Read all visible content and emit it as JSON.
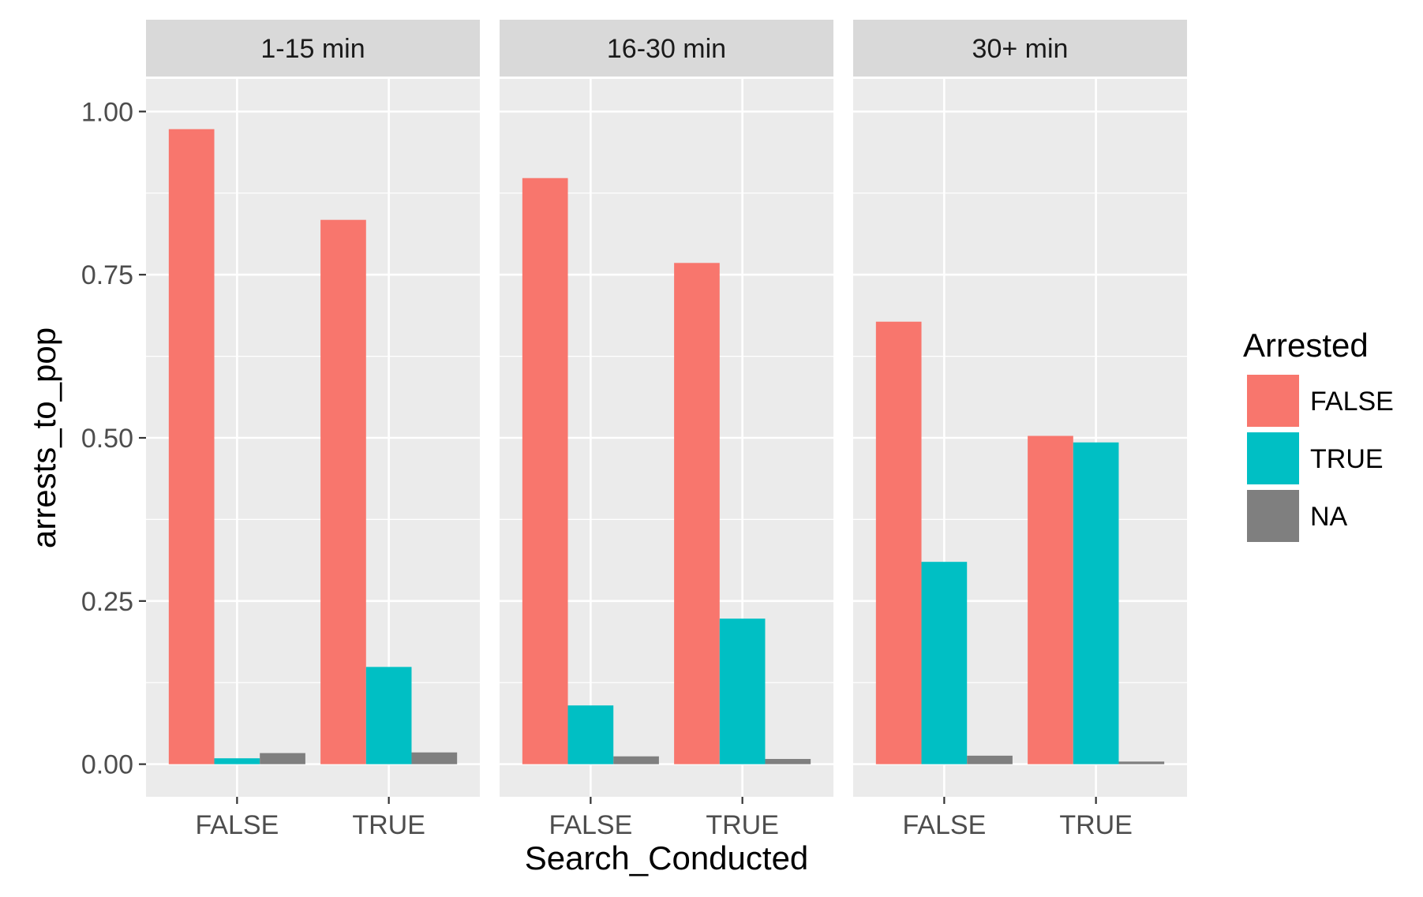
{
  "chart_data": {
    "type": "bar",
    "facets": [
      "1-15 min",
      "16-30 min",
      "30+ min"
    ],
    "categories": [
      "FALSE",
      "TRUE"
    ],
    "xlabel": "Search_Conducted",
    "ylabel": "arrests_to_pop",
    "ylim": [
      -0.05,
      1.05
    ],
    "yticks": [
      0,
      0.25,
      0.5,
      0.75,
      1
    ],
    "ytick_labels": [
      "0.00",
      "0.25",
      "0.50",
      "0.75",
      "1.00"
    ],
    "legend": {
      "title": "Arrested",
      "position": "right",
      "entries": [
        "FALSE",
        "TRUE",
        "NA"
      ]
    },
    "colors": {
      "FALSE": "#F8766D",
      "TRUE": "#00BFC4",
      "NA": "#7F7F7F",
      "panel_bg": "#EBEBEB",
      "strip_bg": "#D9D9D9",
      "grid": "#FFFFFF"
    },
    "grid": true,
    "series": [
      {
        "name": "FALSE",
        "values": [
          [
            0.973,
            0.834
          ],
          [
            0.898,
            0.768
          ],
          [
            0.678,
            0.503
          ]
        ]
      },
      {
        "name": "TRUE",
        "values": [
          [
            0.009,
            0.149
          ],
          [
            0.09,
            0.223
          ],
          [
            0.31,
            0.493
          ]
        ]
      },
      {
        "name": "NA",
        "values": [
          [
            0.017,
            0.018
          ],
          [
            0.012,
            0.008
          ],
          [
            0.013,
            0.004
          ]
        ]
      }
    ]
  }
}
